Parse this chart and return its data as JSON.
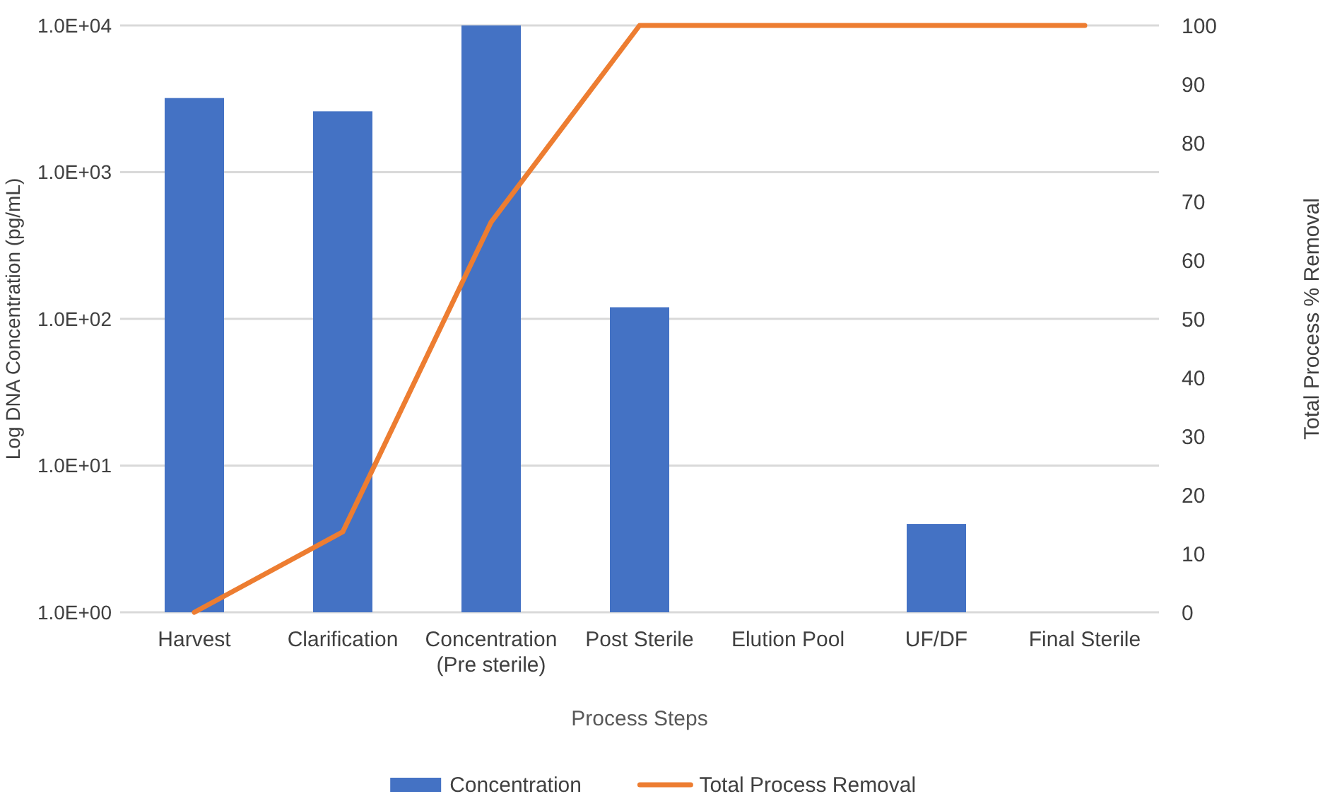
{
  "chart_data": {
    "type": "bar",
    "categories": [
      "Harvest",
      "Clarification",
      "Concentration (Pre sterile)",
      "Post Sterile",
      "Elution Pool",
      "UF/DF",
      "Final Sterile"
    ],
    "xlabel": "Process Steps",
    "ylabel": "Log DNA Concentration (pg/mL)",
    "y2label": "Total Process % Removal",
    "log": "y",
    "ylim": [
      1,
      10000
    ],
    "yticks": [
      {
        "value": 1,
        "label": "1.0E+00"
      },
      {
        "value": 10,
        "label": "1.0E+01"
      },
      {
        "value": 100,
        "label": "1.0E+02"
      },
      {
        "value": 1000,
        "label": "1.0E+03"
      },
      {
        "value": 10000,
        "label": "1.0E+04"
      }
    ],
    "y2lim": [
      0,
      100
    ],
    "y2ticks": [
      0,
      10,
      20,
      30,
      40,
      50,
      60,
      70,
      80,
      90,
      100
    ],
    "grid": "y",
    "legend": "bottom",
    "marker": "none",
    "series": [
      {
        "name": "Concentration",
        "color": "#4472c4",
        "values": [
          3200,
          2600,
          10000,
          120,
          null,
          4,
          null
        ]
      },
      {
        "name": "Total Process Removal",
        "type": "line",
        "axis": "y2",
        "color": "#ed7d31",
        "values": [
          0,
          13.7,
          66.5,
          100,
          100,
          100,
          100
        ]
      }
    ]
  }
}
